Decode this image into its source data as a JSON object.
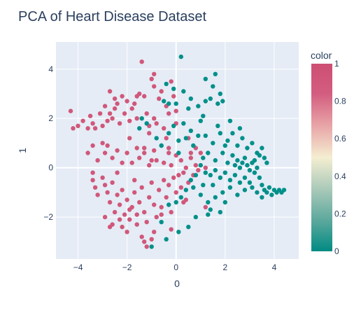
{
  "chart_data": {
    "type": "scatter",
    "title": "PCA of Heart Disease Dataset",
    "xlabel": "0",
    "ylabel": "1",
    "xlim": [
      -4.9,
      5.0
    ],
    "ylim": [
      -3.7,
      5.1
    ],
    "x_ticks": [
      -4,
      -2,
      0,
      2,
      4
    ],
    "y_ticks": [
      -2,
      0,
      2,
      4
    ],
    "grid": true,
    "colorbar": {
      "title": "color",
      "range": [
        0,
        1
      ],
      "ticks": [
        0,
        0.2,
        0.4,
        0.6,
        0.8,
        1
      ],
      "colors": [
        "#008b83",
        "#5aa79c",
        "#a9c9b9",
        "#f4eed1",
        "#e8a4a7",
        "#d35d80",
        "#cd4f73"
      ]
    },
    "colors": {
      "plot_bg": "#e5ecf6",
      "grid": "#ffffff",
      "class_0": "#009089",
      "class_1": "#d0587a",
      "text": "#2a3f5f"
    },
    "series": [
      {
        "color_value": 1,
        "points": [
          [
            -4.3,
            2.3
          ],
          [
            -4.2,
            1.6
          ],
          [
            -4.0,
            1.7
          ],
          [
            -3.8,
            1.9
          ],
          [
            -3.6,
            1.6
          ],
          [
            -3.5,
            2.1
          ],
          [
            -3.4,
            1.8
          ],
          [
            -3.3,
            1.6
          ],
          [
            -3.1,
            2.2
          ],
          [
            -3.0,
            1.7
          ],
          [
            -2.9,
            2.5
          ],
          [
            -2.8,
            1.9
          ],
          [
            -2.7,
            2.2
          ],
          [
            -2.6,
            2.0
          ],
          [
            -2.5,
            2.4
          ],
          [
            -2.4,
            2.6
          ],
          [
            -2.3,
            1.8
          ],
          [
            -2.2,
            2.9
          ],
          [
            -2.1,
            2.2
          ],
          [
            -2.0,
            2.7
          ],
          [
            -1.9,
            1.9
          ],
          [
            -1.8,
            2.4
          ],
          [
            -1.7,
            2.6
          ],
          [
            -1.6,
            2.0
          ],
          [
            -1.5,
            3.0
          ],
          [
            -1.4,
            4.3
          ],
          [
            -1.3,
            2.9
          ],
          [
            -1.2,
            2.2
          ],
          [
            -1.1,
            1.7
          ],
          [
            -1.0,
            3.6
          ],
          [
            -0.9,
            2.0
          ],
          [
            -0.8,
            1.8
          ],
          [
            -0.9,
            3.3
          ],
          [
            -0.9,
            3.8
          ],
          [
            -0.6,
            3.1
          ],
          [
            -0.5,
            1.6
          ],
          [
            -0.4,
            2.5
          ],
          [
            -0.3,
            2.2
          ],
          [
            -0.2,
            3.5
          ],
          [
            -0.1,
            2.9
          ],
          [
            0.0,
            2.3
          ],
          [
            0.0,
            1.8
          ],
          [
            -1.6,
            2.9
          ],
          [
            -2.7,
            3.1
          ],
          [
            -2.5,
            2.8
          ],
          [
            -0.7,
            2.8
          ],
          [
            -1.1,
            1.4
          ],
          [
            -1.3,
            0.8
          ],
          [
            -3.6,
            0.6
          ],
          [
            -3.4,
            0.9
          ],
          [
            -3.2,
            0.3
          ],
          [
            -3.0,
            1.0
          ],
          [
            -2.9,
            0.6
          ],
          [
            -2.8,
            0.9
          ],
          [
            -2.6,
            0.4
          ],
          [
            -2.4,
            0.7
          ],
          [
            -2.2,
            0.2
          ],
          [
            -2.0,
            0.6
          ],
          [
            -1.8,
            0.2
          ],
          [
            -1.6,
            0.8
          ],
          [
            -1.5,
            0.4
          ],
          [
            -1.3,
            0.6
          ],
          [
            -1.1,
            0.1
          ],
          [
            -0.9,
            0.7
          ],
          [
            -0.8,
            0.3
          ],
          [
            -0.6,
            0.9
          ],
          [
            -0.5,
            0.2
          ],
          [
            -0.3,
            0.6
          ],
          [
            -0.2,
            0.1
          ],
          [
            0.0,
            0.5
          ],
          [
            0.2,
            0.3
          ],
          [
            0.4,
            0.0
          ],
          [
            0.6,
            0.4
          ],
          [
            0.8,
            0.1
          ],
          [
            1.0,
            0.6
          ],
          [
            0.5,
            1.2
          ],
          [
            -0.4,
            1.2
          ],
          [
            -1.9,
            1.2
          ],
          [
            -3.0,
            -0.4
          ],
          [
            -2.9,
            -0.7
          ],
          [
            -2.8,
            -1.0
          ],
          [
            -2.7,
            -1.4
          ],
          [
            -2.6,
            -0.6
          ],
          [
            -2.5,
            -1.8
          ],
          [
            -2.4,
            -1.1
          ],
          [
            -2.3,
            -1.5
          ],
          [
            -2.2,
            -0.9
          ],
          [
            -2.1,
            -1.9
          ],
          [
            -2.0,
            -1.3
          ],
          [
            -1.9,
            -2.1
          ],
          [
            -1.8,
            -1.6
          ],
          [
            -1.7,
            -1.0
          ],
          [
            -1.6,
            -2.3
          ],
          [
            -1.5,
            -1.4
          ],
          [
            -1.4,
            -0.8
          ],
          [
            -1.3,
            -1.8
          ],
          [
            -1.2,
            -2.2
          ],
          [
            -1.1,
            -1.2
          ],
          [
            -1.0,
            -0.6
          ],
          [
            -0.9,
            -1.5
          ],
          [
            -0.8,
            -2.0
          ],
          [
            -0.7,
            -0.9
          ],
          [
            -0.6,
            -1.6
          ],
          [
            -0.5,
            -0.5
          ],
          [
            -0.4,
            -1.2
          ],
          [
            -0.3,
            -0.7
          ],
          [
            -0.2,
            -1.8
          ],
          [
            -0.1,
            -0.4
          ],
          [
            0.0,
            -1.0
          ],
          [
            0.1,
            -0.3
          ],
          [
            0.2,
            -0.8
          ],
          [
            0.3,
            -0.2
          ],
          [
            0.5,
            -0.6
          ],
          [
            0.7,
            -0.3
          ],
          [
            0.9,
            -0.1
          ],
          [
            1.2,
            -1.6
          ],
          [
            0.4,
            -1.3
          ],
          [
            -3.2,
            -1.1
          ],
          [
            -3.4,
            -0.5
          ],
          [
            -3.3,
            -0.8
          ],
          [
            -2.2,
            -2.4
          ],
          [
            -2.6,
            -2.3
          ],
          [
            -1.4,
            -2.8
          ],
          [
            -1.3,
            -3.0
          ],
          [
            -1.2,
            -3.2
          ],
          [
            -0.9,
            -2.6
          ],
          [
            -2.0,
            -2.6
          ],
          [
            -1.0,
            -2.9
          ],
          [
            -0.2,
            -2.5
          ],
          [
            -0.6,
            -1.9
          ],
          [
            -1.7,
            -0.5
          ],
          [
            -2.4,
            -0.2
          ],
          [
            -3.4,
            -0.2
          ],
          [
            -2.9,
            -2.0
          ],
          [
            -2.7,
            -2.4
          ],
          [
            -2.3,
            -2.1
          ],
          [
            -1.9,
            -1.7
          ],
          [
            -1.6,
            -1.9
          ],
          [
            0.3,
            -1.4
          ],
          [
            0.6,
            0.6
          ],
          [
            -0.3,
            0.8
          ],
          [
            1.2,
            0.0
          ],
          [
            0.8,
            0.8
          ],
          [
            -1.0,
            0.3
          ]
        ]
      },
      {
        "color_value": 0,
        "points": [
          [
            0.2,
            4.5
          ],
          [
            -0.4,
            3.4
          ],
          [
            -0.1,
            3.2
          ],
          [
            0.3,
            3.1
          ],
          [
            1.2,
            3.6
          ],
          [
            1.5,
            3.3
          ],
          [
            1.6,
            3.8
          ],
          [
            1.4,
            2.8
          ],
          [
            1.8,
            3.0
          ],
          [
            1.9,
            2.7
          ],
          [
            1.7,
            2.6
          ],
          [
            -0.3,
            2.6
          ],
          [
            0.0,
            2.6
          ],
          [
            0.5,
            2.4
          ],
          [
            0.9,
            2.5
          ],
          [
            1.1,
            2.1
          ],
          [
            1.0,
            1.9
          ],
          [
            0.3,
            1.8
          ],
          [
            0.6,
            1.5
          ],
          [
            0.4,
            1.2
          ],
          [
            -0.1,
            1.7
          ],
          [
            -1.4,
            2.0
          ],
          [
            -1.5,
            1.6
          ],
          [
            -0.3,
            1.4
          ],
          [
            -0.6,
            0.9
          ],
          [
            0.1,
            0.6
          ],
          [
            0.7,
            0.9
          ],
          [
            1.2,
            1.3
          ],
          [
            1.5,
            1.0
          ],
          [
            1.8,
            1.4
          ],
          [
            2.1,
            1.1
          ],
          [
            2.3,
            1.4
          ],
          [
            2.5,
            0.9
          ],
          [
            2.7,
            1.2
          ],
          [
            2.9,
            0.8
          ],
          [
            3.1,
            1.0
          ],
          [
            3.3,
            0.6
          ],
          [
            3.5,
            0.8
          ],
          [
            3.6,
            0.4
          ],
          [
            1.3,
            0.6
          ],
          [
            1.6,
            0.3
          ],
          [
            1.9,
            0.6
          ],
          [
            2.1,
            0.2
          ],
          [
            2.3,
            0.5
          ],
          [
            2.4,
            0.1
          ],
          [
            2.5,
            0.3
          ],
          [
            2.6,
            0.0
          ],
          [
            2.7,
            0.2
          ],
          [
            2.8,
            0.4
          ],
          [
            2.9,
            0.1
          ],
          [
            3.0,
            -0.1
          ],
          [
            3.1,
            0.2
          ],
          [
            3.2,
            -0.2
          ],
          [
            3.3,
            0.0
          ],
          [
            3.4,
            -0.4
          ],
          [
            3.5,
            -0.7
          ],
          [
            3.6,
            -0.9
          ],
          [
            3.7,
            -1.0
          ],
          [
            3.8,
            -0.8
          ],
          [
            3.9,
            -1.1
          ],
          [
            4.0,
            -0.9
          ],
          [
            4.1,
            -1.0
          ],
          [
            4.2,
            -0.9
          ],
          [
            4.3,
            -1.0
          ],
          [
            4.4,
            -0.9
          ],
          [
            3.5,
            -1.2
          ],
          [
            3.3,
            -1.0
          ],
          [
            3.1,
            -0.8
          ],
          [
            3.0,
            -0.6
          ],
          [
            2.8,
            -0.4
          ],
          [
            2.6,
            -0.6
          ],
          [
            2.4,
            -0.3
          ],
          [
            2.2,
            -0.5
          ],
          [
            2.0,
            -0.2
          ],
          [
            1.8,
            -0.4
          ],
          [
            1.6,
            -0.1
          ],
          [
            1.4,
            -0.3
          ],
          [
            1.2,
            -0.2
          ],
          [
            1.0,
            0.1
          ],
          [
            0.8,
            -0.3
          ],
          [
            0.6,
            -0.5
          ],
          [
            0.4,
            -0.9
          ],
          [
            0.2,
            -1.2
          ],
          [
            0.0,
            -1.4
          ],
          [
            -0.3,
            -1.5
          ],
          [
            1.0,
            -1.1
          ],
          [
            1.3,
            -1.4
          ],
          [
            1.6,
            -1.2
          ],
          [
            1.9,
            -1.0
          ],
          [
            2.2,
            -0.8
          ],
          [
            2.5,
            -1.1
          ],
          [
            2.8,
            -0.9
          ],
          [
            1.1,
            -0.7
          ],
          [
            1.5,
            -0.7
          ],
          [
            2.0,
            -1.4
          ],
          [
            1.8,
            -1.8
          ],
          [
            1.3,
            -1.9
          ],
          [
            0.8,
            -2.0
          ],
          [
            0.5,
            -2.4
          ],
          [
            0.1,
            -2.6
          ],
          [
            -0.6,
            -2.2
          ],
          [
            -0.4,
            -2.9
          ],
          [
            -1.0,
            -3.2
          ],
          [
            1.4,
            -1.7
          ],
          [
            1.2,
            2.7
          ],
          [
            2.6,
            1.6
          ],
          [
            3.4,
            0.5
          ],
          [
            0.9,
            1.3
          ],
          [
            0.1,
            1.1
          ],
          [
            -0.8,
            1.2
          ],
          [
            -1.2,
            1.8
          ],
          [
            -0.5,
            2.7
          ],
          [
            0.6,
            2.8
          ],
          [
            2.2,
            1.9
          ],
          [
            1.7,
            1.7
          ],
          [
            3.2,
            0.3
          ],
          [
            3.7,
            0.2
          ],
          [
            2.0,
            0.9
          ],
          [
            1.1,
            0.4
          ],
          [
            0.7,
            -0.8
          ]
        ]
      }
    ]
  }
}
